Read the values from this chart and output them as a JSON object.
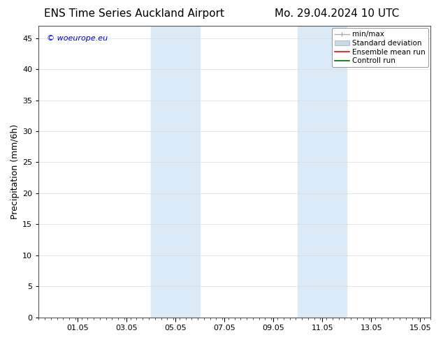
{
  "title_left": "ENS Time Series Auckland Airport",
  "title_right": "Mo. 29.04.2024 10 UTC",
  "ylabel": "Precipitation (mm/6h)",
  "xlim": [
    0,
    16
  ],
  "ylim": [
    0,
    47
  ],
  "yticks": [
    0,
    5,
    10,
    15,
    20,
    25,
    30,
    35,
    40,
    45
  ],
  "xtick_labels": [
    "01.05",
    "03.05",
    "05.05",
    "07.05",
    "09.05",
    "11.05",
    "13.05",
    "15.05"
  ],
  "xtick_positions": [
    1.583,
    3.583,
    5.583,
    7.583,
    9.583,
    11.583,
    13.583,
    15.583
  ],
  "shaded_regions": [
    {
      "x_start": 4.583,
      "x_end": 6.583,
      "color": "#daeaf6"
    },
    {
      "x_start": 10.583,
      "x_end": 12.583,
      "color": "#daeaf6"
    }
  ],
  "background_color": "#ffffff",
  "plot_bg_color": "#ffffff",
  "watermark_text": "© woeurope.eu",
  "watermark_color": "#0000cc",
  "legend_items": [
    {
      "label": "min/max",
      "color": "#aaaaaa"
    },
    {
      "label": "Standard deviation",
      "color": "#c8daea"
    },
    {
      "label": "Ensemble mean run",
      "color": "#ff0000"
    },
    {
      "label": "Controll run",
      "color": "#006600"
    }
  ],
  "title_fontsize": 11,
  "label_fontsize": 9,
  "tick_fontsize": 8,
  "legend_fontsize": 7.5,
  "watermark_fontsize": 8
}
